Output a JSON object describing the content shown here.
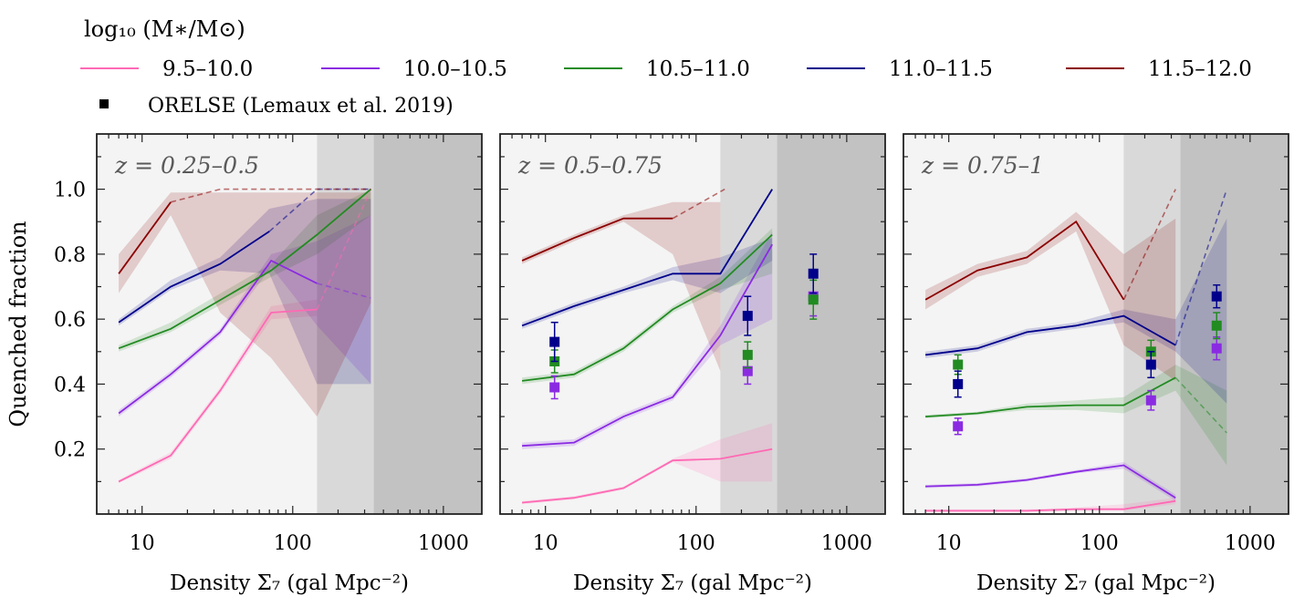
{
  "legend": {
    "title": "log₁₀ (M∗/M⊙)",
    "observed_label": "ORELSE (Lemaux et al. 2019)"
  },
  "chart_data": [
    {
      "type": "line",
      "title": "z = 0.25–0.5",
      "xlabel": "Density Σ₇ (gal Mpc⁻²)",
      "ylabel": "Quenched fraction",
      "xscale": "log",
      "xlim": [
        5,
        1800
      ],
      "ylim": [
        0.0,
        1.17
      ],
      "xticks": [
        10,
        100,
        1000
      ],
      "xticklabels": [
        "10",
        "100",
        "1000"
      ],
      "yticks": [
        0.2,
        0.4,
        0.6,
        0.8,
        1.0
      ],
      "yticklabels": [
        "0.2",
        "0.4",
        "0.6",
        "0.8",
        "1.0"
      ],
      "shade_regions": [
        {
          "x0": 145,
          "x1": 345,
          "tone": "light"
        },
        {
          "x0": 345,
          "x1": 1800,
          "tone": "dark"
        }
      ],
      "series": [
        {
          "name": "9.5–10.0",
          "color": "#ff69b4",
          "x": [
            7,
            15.5,
            33,
            72,
            145
          ],
          "y": [
            0.1,
            0.18,
            0.38,
            0.62,
            0.63
          ],
          "dashed_x": [
            145,
            330
          ],
          "dashed_y": [
            0.63,
            1.0
          ],
          "band_x": [
            7,
            15.5,
            33,
            72,
            145
          ],
          "band_lo": [
            0.095,
            0.17,
            0.37,
            0.6,
            0.61
          ],
          "band_hi": [
            0.105,
            0.19,
            0.39,
            0.64,
            0.66
          ]
        },
        {
          "name": "10.0–10.5",
          "color": "#8a2be2",
          "x": [
            7,
            15.5,
            33,
            72,
            145
          ],
          "y": [
            0.31,
            0.43,
            0.56,
            0.78,
            0.71
          ],
          "dashed_x": [
            145,
            330
          ],
          "dashed_y": [
            0.71,
            0.665
          ],
          "band_x": [
            7,
            15.5,
            33,
            72,
            145,
            330
          ],
          "band_lo": [
            0.3,
            0.42,
            0.55,
            0.76,
            0.58,
            0.4
          ],
          "band_hi": [
            0.32,
            0.44,
            0.57,
            0.8,
            0.84,
            0.92
          ]
        },
        {
          "name": "10.5–11.0",
          "color": "#228b22",
          "x": [
            7,
            15.5,
            72,
            145,
            330
          ],
          "y": [
            0.51,
            0.57,
            0.75,
            0.86,
            1.0
          ],
          "band_x": [
            7,
            15.5,
            72,
            145,
            330
          ],
          "band_lo": [
            0.5,
            0.56,
            0.73,
            0.8,
            0.92
          ],
          "band_hi": [
            0.52,
            0.59,
            0.77,
            0.92,
            1.0
          ]
        },
        {
          "name": "11.0–11.5",
          "color": "#00008b",
          "x": [
            7,
            15.5,
            33,
            70
          ],
          "y": [
            0.59,
            0.7,
            0.77,
            0.87
          ],
          "dashed_x": [
            70,
            145,
            330
          ],
          "dashed_y": [
            0.87,
            1.0,
            1.0
          ],
          "band_x": [
            7,
            15.5,
            33,
            70,
            145,
            330
          ],
          "band_lo": [
            0.58,
            0.69,
            0.75,
            0.74,
            0.4,
            0.4
          ],
          "band_hi": [
            0.6,
            0.72,
            0.79,
            0.94,
            0.97,
            0.97
          ]
        },
        {
          "name": "11.5–12.0",
          "color": "#8b0000",
          "x": [
            7,
            15.5
          ],
          "y": [
            0.74,
            0.96
          ],
          "dashed_x": [
            15.5,
            33,
            72,
            145,
            330
          ],
          "dashed_y": [
            0.96,
            1.0,
            1.0,
            1.0,
            1.0
          ],
          "band_x": [
            7,
            15.5,
            33,
            72,
            145,
            330
          ],
          "band_lo": [
            0.68,
            0.92,
            0.62,
            0.48,
            0.3,
            0.65
          ],
          "band_hi": [
            0.8,
            0.99,
            0.99,
            0.99,
            0.99,
            0.99
          ]
        }
      ],
      "observations": []
    },
    {
      "type": "line",
      "title": "z = 0.5–0.75",
      "xlabel": "Density Σ₇ (gal Mpc⁻²)",
      "ylabel": "",
      "xscale": "log",
      "xlim": [
        5,
        1800
      ],
      "ylim": [
        0.0,
        1.17
      ],
      "xticks": [
        10,
        100,
        1000
      ],
      "xticklabels": [
        "10",
        "100",
        "1000"
      ],
      "yticks": [
        0.2,
        0.4,
        0.6,
        0.8,
        1.0
      ],
      "yticklabels": [],
      "shade_regions": [
        {
          "x0": 145,
          "x1": 345,
          "tone": "light"
        },
        {
          "x0": 345,
          "x1": 1800,
          "tone": "dark"
        }
      ],
      "series": [
        {
          "name": "9.5–10.0",
          "color": "#ff69b4",
          "x": [
            7,
            15.5,
            33,
            70,
            145,
            320
          ],
          "y": [
            0.035,
            0.05,
            0.08,
            0.165,
            0.17,
            0.2
          ],
          "band_x": [
            7,
            15.5,
            33,
            70,
            145,
            320
          ],
          "band_lo": [
            0.03,
            0.045,
            0.075,
            0.16,
            0.1,
            0.1
          ],
          "band_hi": [
            0.04,
            0.055,
            0.085,
            0.17,
            0.23,
            0.28
          ]
        },
        {
          "name": "10.0–10.5",
          "color": "#8a2be2",
          "x": [
            7,
            15.5,
            33,
            70,
            145,
            320
          ],
          "y": [
            0.21,
            0.22,
            0.3,
            0.36,
            0.55,
            0.83
          ],
          "band_x": [
            7,
            15.5,
            33,
            70,
            145,
            320
          ],
          "band_lo": [
            0.2,
            0.21,
            0.29,
            0.35,
            0.52,
            0.6
          ],
          "band_hi": [
            0.22,
            0.23,
            0.31,
            0.37,
            0.58,
            0.87
          ]
        },
        {
          "name": "10.5–11.0",
          "color": "#228b22",
          "x": [
            7,
            15.5,
            33,
            70,
            145,
            320
          ],
          "y": [
            0.41,
            0.43,
            0.51,
            0.63,
            0.71,
            0.86
          ],
          "band_x": [
            7,
            15.5,
            33,
            70,
            145,
            320
          ],
          "band_lo": [
            0.4,
            0.42,
            0.5,
            0.62,
            0.69,
            0.74
          ],
          "band_hi": [
            0.42,
            0.44,
            0.52,
            0.64,
            0.73,
            0.88
          ]
        },
        {
          "name": "11.0–11.5",
          "color": "#00008b",
          "x": [
            7,
            15.5,
            33,
            70,
            145,
            320
          ],
          "y": [
            0.58,
            0.64,
            0.69,
            0.74,
            0.74,
            1.0
          ],
          "band_x": [
            7,
            15.5,
            33,
            70,
            145,
            320
          ],
          "band_lo": [
            0.57,
            0.63,
            0.68,
            0.72,
            0.68,
            0.78
          ],
          "band_hi": [
            0.59,
            0.65,
            0.7,
            0.76,
            0.79,
            0.85
          ]
        },
        {
          "name": "11.5–12.0",
          "color": "#8b0000",
          "x": [
            7,
            15.5,
            33,
            70
          ],
          "y": [
            0.78,
            0.85,
            0.91,
            0.91
          ],
          "dashed_x": [
            70,
            155
          ],
          "dashed_y": [
            0.91,
            1.0
          ],
          "band_x": [
            7,
            15.5,
            33,
            70,
            145
          ],
          "band_lo": [
            0.77,
            0.84,
            0.9,
            0.8,
            0.44
          ],
          "band_hi": [
            0.79,
            0.86,
            0.92,
            0.96,
            0.96
          ]
        }
      ],
      "observations": [
        {
          "name": "10.0–10.5",
          "color": "#8a2be2",
          "x": [
            11.5,
            220,
            600
          ],
          "y": [
            0.39,
            0.44,
            0.67
          ],
          "yerr": [
            0.035,
            0.04,
            0.06
          ]
        },
        {
          "name": "10.5–11.0",
          "color": "#228b22",
          "x": [
            11.5,
            220,
            600
          ],
          "y": [
            0.47,
            0.49,
            0.66
          ],
          "yerr": [
            0.035,
            0.04,
            0.06
          ]
        },
        {
          "name": "11.0–11.5",
          "color": "#00008b",
          "x": [
            11.5,
            220,
            600
          ],
          "y": [
            0.53,
            0.61,
            0.74
          ],
          "yerr": [
            0.06,
            0.06,
            0.06
          ]
        }
      ]
    },
    {
      "type": "line",
      "title": "z = 0.75–1",
      "xlabel": "Density Σ₇ (gal Mpc⁻²)",
      "ylabel": "",
      "xscale": "log",
      "xlim": [
        5,
        1800
      ],
      "ylim": [
        0.0,
        1.17
      ],
      "xticks": [
        10,
        100,
        1000
      ],
      "xticklabels": [
        "10",
        "100",
        "1000"
      ],
      "yticks": [
        0.2,
        0.4,
        0.6,
        0.8,
        1.0
      ],
      "yticklabels": [],
      "shade_regions": [
        {
          "x0": 145,
          "x1": 345,
          "tone": "light"
        },
        {
          "x0": 345,
          "x1": 1800,
          "tone": "dark"
        }
      ],
      "series": [
        {
          "name": "9.5–10.0",
          "color": "#ff69b4",
          "x": [
            7,
            15.5,
            33,
            70,
            145,
            320
          ],
          "y": [
            0.01,
            0.01,
            0.01,
            0.015,
            0.015,
            0.04
          ],
          "band_x": [
            7,
            15.5,
            33,
            70,
            145,
            320
          ],
          "band_lo": [
            0.005,
            0.005,
            0.005,
            0.01,
            0.01,
            0.03
          ],
          "band_hi": [
            0.015,
            0.015,
            0.015,
            0.02,
            0.03,
            0.05
          ]
        },
        {
          "name": "10.0–10.5",
          "color": "#8a2be2",
          "x": [
            7,
            15.5,
            33,
            70,
            145,
            320
          ],
          "y": [
            0.085,
            0.09,
            0.105,
            0.13,
            0.15,
            0.05
          ],
          "band_x": [
            7,
            15.5,
            33,
            70,
            145,
            320
          ],
          "band_lo": [
            0.08,
            0.085,
            0.1,
            0.125,
            0.14,
            0.04
          ],
          "band_hi": [
            0.09,
            0.095,
            0.11,
            0.135,
            0.16,
            0.06
          ]
        },
        {
          "name": "10.5–11.0",
          "color": "#228b22",
          "x": [
            7,
            15.5,
            33,
            70,
            145,
            320
          ],
          "y": [
            0.3,
            0.31,
            0.33,
            0.335,
            0.335,
            0.42
          ],
          "dashed_x": [
            320,
            700
          ],
          "dashed_y": [
            0.42,
            0.25
          ],
          "band_x": [
            7,
            15.5,
            33,
            70,
            145,
            320,
            700
          ],
          "band_lo": [
            0.295,
            0.305,
            0.32,
            0.32,
            0.31,
            0.38,
            0.15
          ],
          "band_hi": [
            0.305,
            0.315,
            0.34,
            0.35,
            0.36,
            0.46,
            0.38
          ]
        },
        {
          "name": "11.0–11.5",
          "color": "#00008b",
          "x": [
            7,
            15.5,
            33,
            70,
            145,
            320
          ],
          "y": [
            0.49,
            0.51,
            0.56,
            0.58,
            0.61,
            0.52
          ],
          "dashed_x": [
            320,
            700
          ],
          "dashed_y": [
            0.52,
            1.0
          ],
          "band_x": [
            7,
            15.5,
            33,
            70,
            145,
            320,
            700
          ],
          "band_lo": [
            0.48,
            0.5,
            0.55,
            0.57,
            0.59,
            0.5,
            0.34
          ],
          "band_hi": [
            0.5,
            0.52,
            0.57,
            0.59,
            0.63,
            0.6,
            0.91
          ]
        },
        {
          "name": "11.5–12.0",
          "color": "#8b0000",
          "x": [
            7,
            15.5,
            33,
            70,
            145
          ],
          "y": [
            0.66,
            0.75,
            0.79,
            0.9,
            0.66
          ],
          "dashed_x": [
            145,
            320
          ],
          "dashed_y": [
            0.66,
            1.0
          ],
          "band_x": [
            7,
            15.5,
            33,
            70,
            145,
            320
          ],
          "band_lo": [
            0.63,
            0.73,
            0.77,
            0.87,
            0.52,
            0.41
          ],
          "band_hi": [
            0.69,
            0.77,
            0.81,
            0.93,
            0.8,
            0.91
          ]
        }
      ],
      "observations": [
        {
          "name": "10.0–10.5",
          "color": "#8a2be2",
          "x": [
            11.5,
            220,
            600
          ],
          "y": [
            0.27,
            0.35,
            0.51
          ],
          "yerr": [
            0.025,
            0.03,
            0.035
          ]
        },
        {
          "name": "10.5–11.0",
          "color": "#228b22",
          "x": [
            11.5,
            220,
            600
          ],
          "y": [
            0.46,
            0.5,
            0.58
          ],
          "yerr": [
            0.03,
            0.035,
            0.04
          ]
        },
        {
          "name": "11.0–11.5",
          "color": "#00008b",
          "x": [
            11.5,
            220,
            600
          ],
          "y": [
            0.4,
            0.46,
            0.67
          ],
          "yerr": [
            0.04,
            0.04,
            0.035
          ]
        }
      ]
    }
  ]
}
